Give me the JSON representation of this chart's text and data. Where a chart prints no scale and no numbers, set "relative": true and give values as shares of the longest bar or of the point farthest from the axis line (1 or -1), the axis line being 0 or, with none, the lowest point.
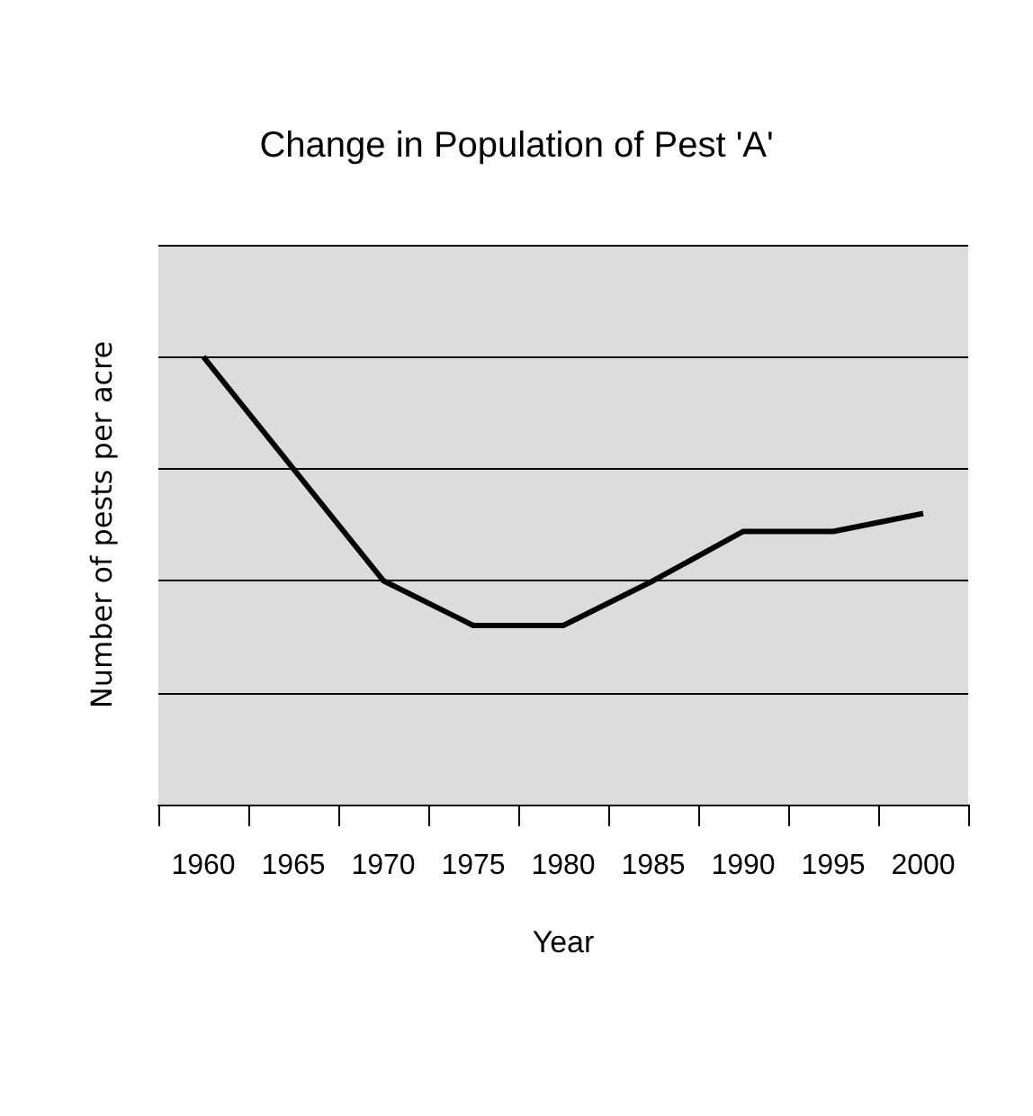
{
  "chart_data": {
    "type": "line",
    "title": "Change in Population of Pest 'A'",
    "xlabel": "Year",
    "ylabel": "Number of pests per acre",
    "categories": [
      "1960",
      "1965",
      "1970",
      "1975",
      "1980",
      "1985",
      "1990",
      "1995",
      "2000"
    ],
    "series": [
      {
        "color": "#000000",
        "values": [
          1,
          0.75,
          0.5,
          0.4,
          0.4,
          0.5,
          0.61,
          0.61,
          0.65
        ]
      }
    ],
    "relative": true,
    "grid": "y",
    "marker": "none",
    "line_style": "solid"
  }
}
